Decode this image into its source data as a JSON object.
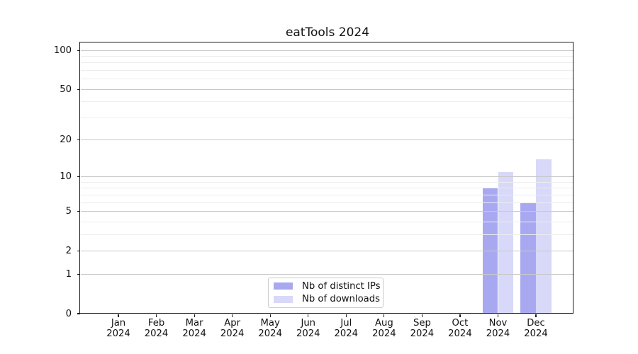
{
  "chart_data": {
    "type": "bar",
    "title": "eatTools 2024",
    "categories": [
      "Jan 2024",
      "Feb 2024",
      "Mar 2024",
      "Apr 2024",
      "May 2024",
      "Jun 2024",
      "Jul 2024",
      "Aug 2024",
      "Sep 2024",
      "Oct 2024",
      "Nov 2024",
      "Dec 2024"
    ],
    "series": [
      {
        "name": "Nb of distinct IPs",
        "color": "#a8a8f1",
        "values": [
          0,
          0,
          0,
          0,
          0,
          0,
          0,
          0,
          0,
          0,
          8,
          6
        ]
      },
      {
        "name": "Nb of downloads",
        "color": "#d8d8f8",
        "values": [
          0,
          0,
          0,
          0,
          0,
          0,
          0,
          0,
          0,
          0,
          11,
          14
        ]
      }
    ],
    "xlabel": "",
    "ylabel": "",
    "yscale": "log1p",
    "ylim": [
      0,
      115
    ],
    "yticks": [
      0,
      1,
      2,
      5,
      10,
      20,
      50,
      100
    ],
    "yticks_minor": [
      3,
      4,
      6,
      7,
      8,
      9,
      30,
      40,
      60,
      70,
      80,
      90
    ],
    "grid": "horizontal, major and minor, drawn above bars",
    "legend_position": "lower center",
    "colors": {
      "grid_major": "#c9c9c9",
      "grid_minor": "#ededed",
      "axis": "#1a1a1a",
      "text": "#111111",
      "background": "#ffffff"
    }
  }
}
